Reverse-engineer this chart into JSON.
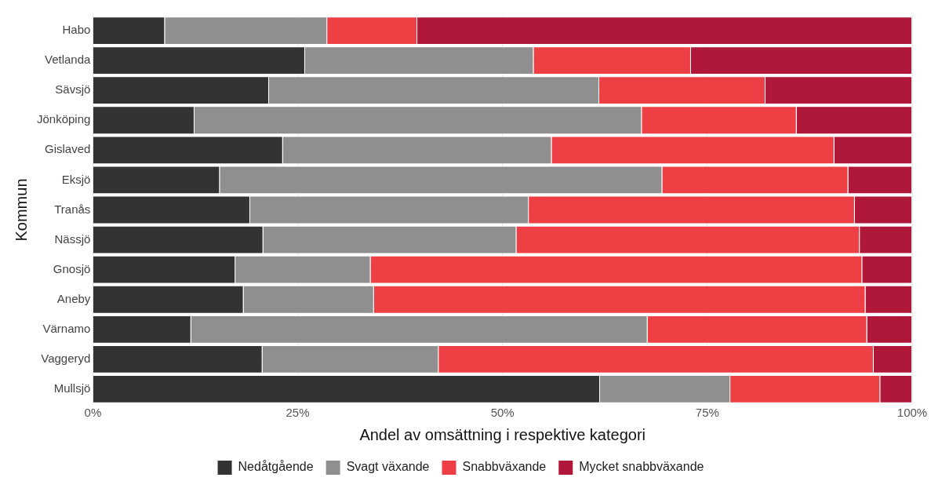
{
  "chart_data": {
    "type": "bar",
    "orientation": "horizontal",
    "stacked": true,
    "xlabel": "Andel av omsättning i respektive kategori",
    "ylabel": "Kommun",
    "categories": [
      "Habo",
      "Vetlanda",
      "Sävsjö",
      "Jönköping",
      "Gislaved",
      "Eksjö",
      "Tranås",
      "Nässjö",
      "Gnosjö",
      "Aneby",
      "Värnamo",
      "Vaggeryd",
      "Mullsjö"
    ],
    "series": [
      {
        "name": "Nedåtgående",
        "color": "#333333",
        "values": [
          8.8,
          25.9,
          21.5,
          12.4,
          23.2,
          15.5,
          19.2,
          20.8,
          17.4,
          18.4,
          12.0,
          20.7,
          61.9
        ]
      },
      {
        "name": "Svagt växande",
        "color": "#8f8f8f",
        "values": [
          19.8,
          27.9,
          40.3,
          54.6,
          32.8,
          54.0,
          34.0,
          30.9,
          16.5,
          15.9,
          55.7,
          21.5,
          15.9
        ]
      },
      {
        "name": "Snabbväxande",
        "color": "#ee4044",
        "values": [
          11.0,
          19.2,
          20.3,
          18.9,
          34.5,
          22.7,
          39.8,
          41.9,
          60.0,
          60.0,
          26.8,
          53.1,
          18.3
        ]
      },
      {
        "name": "Mycket snabbväxande",
        "color": "#b0183a",
        "values": [
          60.4,
          27.0,
          17.9,
          14.1,
          9.5,
          7.8,
          7.0,
          6.4,
          6.1,
          5.7,
          5.5,
          4.7,
          3.9
        ]
      }
    ],
    "xlim": [
      0,
      100
    ],
    "xticks": [
      {
        "value": 0,
        "label": "0%"
      },
      {
        "value": 25,
        "label": "25%"
      },
      {
        "value": 50,
        "label": "50%"
      },
      {
        "value": 75,
        "label": "75%"
      },
      {
        "value": 100,
        "label": "100%"
      }
    ],
    "grid": true,
    "legend": "bottom"
  }
}
